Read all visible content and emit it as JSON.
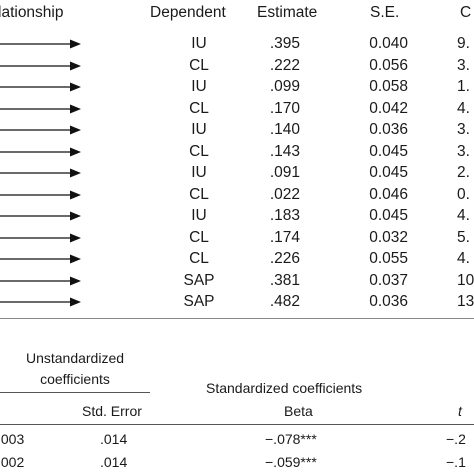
{
  "top_table": {
    "headers": {
      "relationship": "lationship",
      "dependent": "Dependent",
      "estimate": "Estimate",
      "se": "S.E.",
      "cr": "C"
    },
    "rows": [
      {
        "dependent": "IU",
        "estimate": ".395",
        "se": "0.040",
        "cr": "9."
      },
      {
        "dependent": "CL",
        "estimate": ".222",
        "se": "0.056",
        "cr": "3."
      },
      {
        "dependent": "IU",
        "estimate": ".099",
        "se": "0.058",
        "cr": "1."
      },
      {
        "dependent": "CL",
        "estimate": ".170",
        "se": "0.042",
        "cr": "4."
      },
      {
        "dependent": "IU",
        "estimate": ".140",
        "se": "0.036",
        "cr": "3."
      },
      {
        "dependent": "CL",
        "estimate": ".143",
        "se": "0.045",
        "cr": "3."
      },
      {
        "dependent": "IU",
        "estimate": ".091",
        "se": "0.045",
        "cr": "2."
      },
      {
        "dependent": "CL",
        "estimate": ".022",
        "se": "0.046",
        "cr": "0."
      },
      {
        "dependent": "IU",
        "estimate": ".183",
        "se": "0.045",
        "cr": "4."
      },
      {
        "dependent": "CL",
        "estimate": ".174",
        "se": "0.032",
        "cr": "5."
      },
      {
        "dependent": "CL",
        "estimate": ".226",
        "se": "0.055",
        "cr": "4."
      },
      {
        "dependent": "SAP",
        "estimate": ".381",
        "se": "0.037",
        "cr": "10."
      },
      {
        "dependent": "SAP",
        "estimate": ".482",
        "se": "0.036",
        "cr": "13."
      }
    ]
  },
  "bottom_table": {
    "unstd_line1": "Unstandardized",
    "unstd_line2": "coefficients",
    "std_heading": "Standardized coefficients",
    "std_error": "Std. Error",
    "beta": "Beta",
    "t": "t",
    "rows": [
      {
        "b": ".003",
        "se": ".014",
        "beta": "−.078***",
        "t": "−.2"
      },
      {
        "b": ".002",
        "se": ".014",
        "beta": "−.059***",
        "t": "−.1"
      }
    ]
  }
}
